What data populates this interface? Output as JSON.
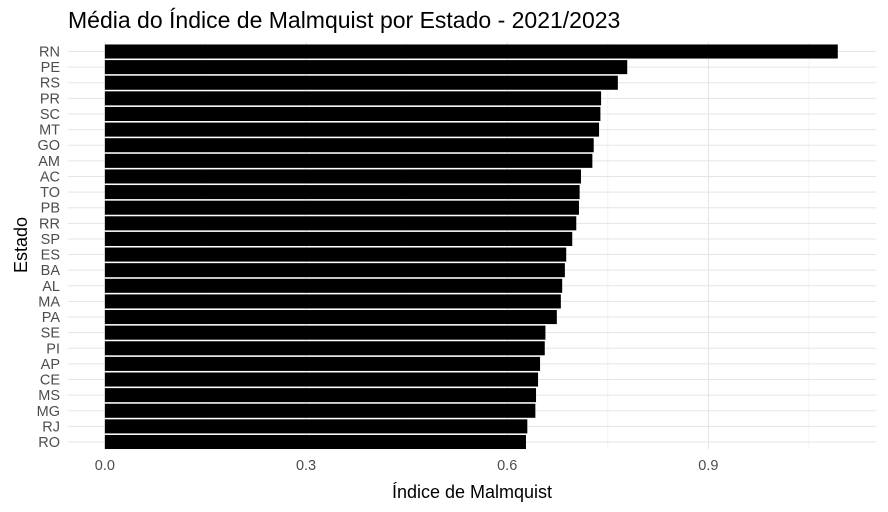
{
  "chart_data": {
    "type": "bar",
    "orientation": "horizontal",
    "title": "Média do Índice de Malmquist por Estado - 2021/2023",
    "xlabel": "Índice de Malmquist",
    "ylabel": "Estado",
    "categories": [
      "RN",
      "PE",
      "RS",
      "PR",
      "SC",
      "MT",
      "GO",
      "AM",
      "AC",
      "TO",
      "PB",
      "RR",
      "SP",
      "ES",
      "BA",
      "AL",
      "MA",
      "PA",
      "SE",
      "PI",
      "AP",
      "CE",
      "MS",
      "MG",
      "RJ",
      "RO"
    ],
    "values": [
      1.093,
      0.779,
      0.765,
      0.74,
      0.739,
      0.737,
      0.729,
      0.727,
      0.71,
      0.708,
      0.707,
      0.703,
      0.697,
      0.688,
      0.686,
      0.682,
      0.68,
      0.674,
      0.657,
      0.656,
      0.649,
      0.646,
      0.643,
      0.642,
      0.63,
      0.628
    ],
    "xlim": [
      -0.055,
      1.15
    ],
    "xticks": [
      0.0,
      0.3,
      0.6,
      0.9
    ],
    "xtick_labels": [
      "0.0",
      "0.3",
      "0.6",
      "0.9"
    ],
    "bar_color": "#000000",
    "grid": true,
    "legend": "none"
  }
}
